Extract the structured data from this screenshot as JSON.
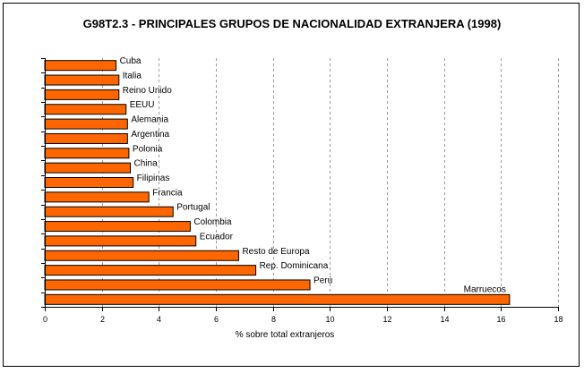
{
  "chart_data": {
    "type": "bar",
    "orientation": "horizontal",
    "title": "G98T2.3 - PRINCIPALES GRUPOS DE NACIONALIDAD EXTRANJERA (1998)",
    "xlabel": "% sobre total extranjeros",
    "ylabel": "",
    "xlim": [
      0,
      18
    ],
    "xticks": [
      "0",
      "2",
      "4",
      "6",
      "8",
      "10",
      "12",
      "14",
      "16",
      "18"
    ],
    "grid": "vertical dashed",
    "bar_color": "#ff6600",
    "categories": [
      "Cuba",
      "Italia",
      "Reino Unido",
      "EEUU",
      "Alemania",
      "Argentina",
      "Polonia",
      "China",
      "Filipinas",
      "Francia",
      "Portugal",
      "Colombia",
      "Ecuador",
      "Resto de Europa",
      "Rep. Dominicana",
      "Perú",
      "Marruecos"
    ],
    "values": [
      2.5,
      2.6,
      2.6,
      2.85,
      2.9,
      2.9,
      2.95,
      3.0,
      3.1,
      3.65,
      4.5,
      5.1,
      5.3,
      6.8,
      7.4,
      9.3,
      16.3
    ]
  }
}
